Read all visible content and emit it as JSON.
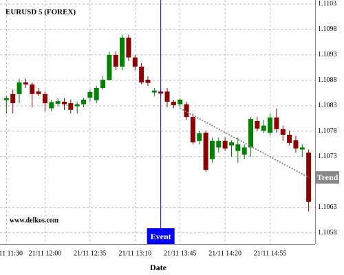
{
  "chart_data": {
    "type": "candlestick",
    "title": "EURUSD 5 (FOREX)",
    "watermark": "www.delkos.com",
    "x_label": "Date",
    "categories": [
      "21/11 11:30",
      null,
      null,
      null,
      null,
      null,
      "21/11 12:00",
      null,
      null,
      null,
      null,
      null,
      null,
      "21/11 12:35",
      null,
      null,
      null,
      null,
      null,
      null,
      "21/11 13:10",
      null,
      null,
      null,
      null,
      null,
      null,
      "21/11 13:45",
      null,
      null,
      null,
      null,
      null,
      null,
      "21/11 14:20",
      null,
      null,
      null,
      null,
      null,
      null,
      "21/11 14:55",
      null,
      null,
      null,
      null,
      null,
      null
    ],
    "open": [
      1.10841,
      1.10853,
      1.10853,
      1.10876,
      1.10872,
      1.10858,
      1.10853,
      1.10825,
      1.10834,
      1.10838,
      1.10835,
      1.10829,
      1.10833,
      1.10846,
      1.10841,
      1.10865,
      1.10881,
      1.1093,
      1.10907,
      1.10964,
      1.10925,
      1.10907,
      1.10881,
      1.10856,
      1.10858,
      1.10858,
      1.10838,
      1.10833,
      1.10833,
      1.10808,
      1.10761,
      1.10777,
      1.10725,
      1.10748,
      1.10761,
      1.10752,
      1.10741,
      1.10734,
      1.10748,
      1.108,
      1.10781,
      1.10777,
      1.10807,
      1.10784,
      1.10773,
      1.10762,
      1.10744,
      1.10738
    ],
    "high": [
      1.10849,
      1.10862,
      1.10883,
      1.10883,
      1.10876,
      1.10865,
      1.10858,
      1.10842,
      1.10845,
      1.10845,
      1.10842,
      1.10838,
      1.10846,
      1.10862,
      1.10869,
      1.10888,
      1.10937,
      1.10937,
      1.1097,
      1.1097,
      1.1093,
      1.10914,
      1.10888,
      1.10865,
      1.10862,
      1.10865,
      1.10842,
      1.10845,
      1.10838,
      1.10815,
      1.10781,
      1.10781,
      1.10768,
      1.10768,
      1.10768,
      1.10762,
      1.10768,
      1.10754,
      1.10808,
      1.10808,
      1.10802,
      1.10815,
      1.10825,
      1.10791,
      1.10781,
      1.10771,
      1.10754,
      1.10744
    ],
    "low": [
      1.10815,
      1.10815,
      1.10835,
      1.10865,
      1.10827,
      1.10849,
      1.10819,
      1.10819,
      1.10829,
      1.10822,
      1.10815,
      1.10815,
      1.10827,
      1.10838,
      1.10835,
      1.10862,
      1.10879,
      1.109,
      1.109,
      1.10918,
      1.109,
      1.10872,
      1.10869,
      1.10849,
      1.10849,
      1.10827,
      1.10825,
      1.10827,
      1.10802,
      1.10754,
      1.10754,
      1.107,
      1.10718,
      1.10738,
      1.10741,
      1.1073,
      1.10718,
      1.10725,
      1.1073,
      1.10781,
      1.10776,
      1.10771,
      1.10777,
      1.10761,
      1.10752,
      1.10738,
      1.1073,
      1.10622
    ],
    "close": [
      1.10845,
      1.10835,
      1.10876,
      1.10872,
      1.10853,
      1.10853,
      1.10835,
      1.10837,
      1.10839,
      1.10833,
      1.10822,
      1.10833,
      1.10842,
      1.10857,
      1.10865,
      1.10881,
      1.1093,
      1.10907,
      1.10964,
      1.10925,
      1.10907,
      1.10876,
      1.10875,
      1.1086,
      1.10854,
      1.10838,
      1.10831,
      1.10842,
      1.10808,
      1.10758,
      1.10776,
      1.10704,
      1.10761,
      1.10761,
      1.10746,
      1.10758,
      1.10754,
      1.10748,
      1.10804,
      1.10785,
      1.10791,
      1.10807,
      1.10784,
      1.10773,
      1.10757,
      1.10746,
      1.10748,
      1.10641
    ],
    "up_color": "#008000",
    "down_color": "#8b0000",
    "ylim": [
      1.10558,
      1.11038
    ],
    "yticks": [
      1.1058,
      1.1063,
      1.1073,
      1.1078,
      1.1083,
      1.1088,
      1.1093,
      1.1098,
      1.1103
    ],
    "grid": true,
    "event": {
      "label": "Event",
      "x": 24,
      "color": "#0000ff"
    },
    "trend": {
      "label": "Trend",
      "x": [
        27,
        47
      ],
      "y": [
        1.10825,
        1.10689
      ],
      "color": "#888888"
    }
  }
}
